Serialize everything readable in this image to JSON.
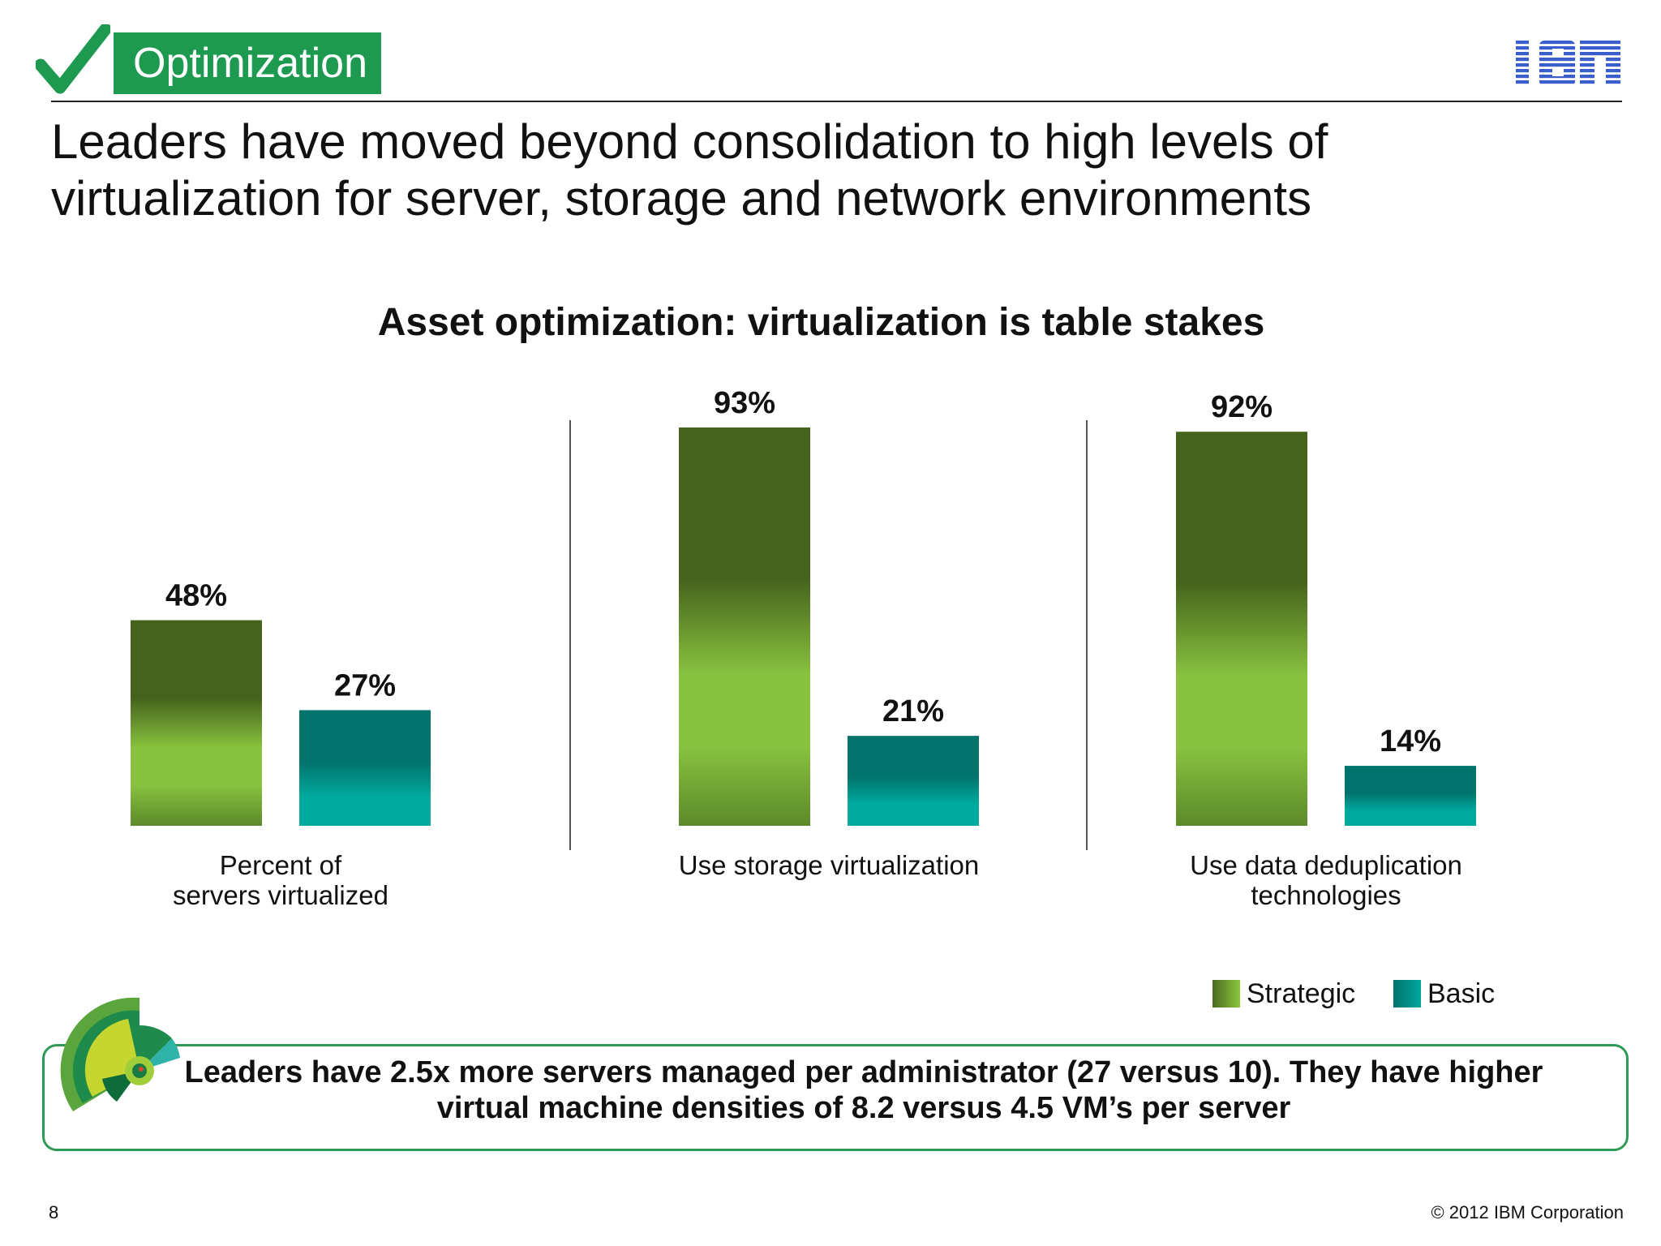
{
  "header": {
    "section_label": "Optimization",
    "headline": "Leaders have moved beyond consolidation to high levels of virtualization for server, storage and network environments",
    "logo_text": "IBM"
  },
  "chart_data": {
    "type": "bar",
    "title": "Asset optimization: virtualization is table stakes",
    "categories": [
      "Percent of servers virtualized",
      "Use storage virtualization",
      "Use data deduplication technologies"
    ],
    "category_lines": [
      [
        "Percent of",
        "servers virtualized"
      ],
      [
        "Use storage virtualization"
      ],
      [
        "Use data deduplication",
        "technologies"
      ]
    ],
    "series": [
      {
        "name": "Strategic",
        "values": [
          48,
          93,
          92
        ],
        "labels": [
          "48%",
          "93%",
          "92%"
        ]
      },
      {
        "name": "Basic",
        "values": [
          27,
          21,
          14
        ],
        "labels": [
          "27%",
          "21%",
          "14%"
        ]
      }
    ],
    "ylim": [
      0,
      100
    ],
    "xlabel": "",
    "ylabel": "",
    "legend_position": "bottom-right",
    "grid": false,
    "colors": {
      "strategic_dark": "#45631c",
      "strategic_light": "#8cc63f",
      "basic_dark": "#00736c",
      "basic_light": "#00a99d"
    }
  },
  "legend": {
    "strategic": "Strategic",
    "basic": "Basic"
  },
  "callout": {
    "text": "Leaders have 2.5x more servers managed per administrator (27 versus 10). They have higher virtual machine densities of 8.2 versus 4.5 VM’s per server"
  },
  "footer": {
    "page_number": "8",
    "copyright": "© 2012 IBM Corporation"
  },
  "colors": {
    "brand_green": "#1d9a4f",
    "ibm_blue": "#3a5fcd"
  }
}
